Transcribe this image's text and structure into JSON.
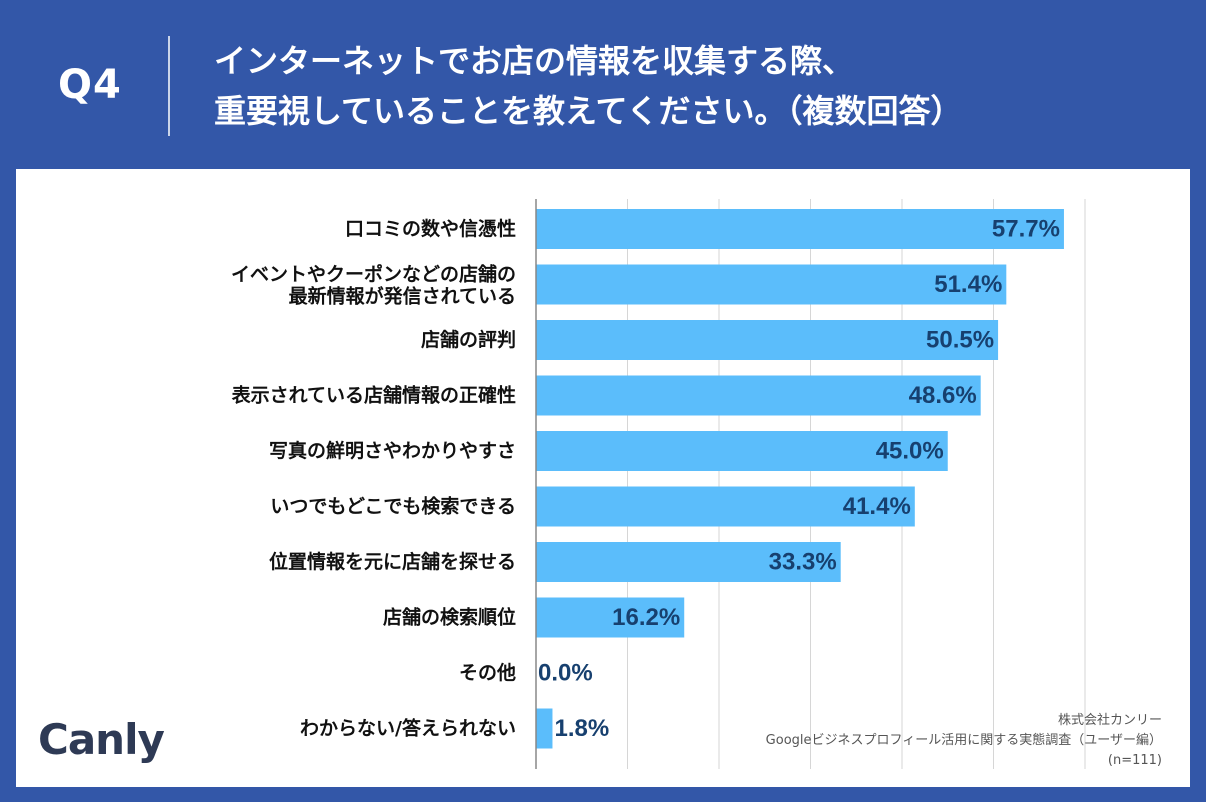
{
  "header": {
    "q_label": "Q4",
    "title_line1": "インターネットでお店の情報を収集する際、",
    "title_line2": "重要視していることを教えてください。（複数回答）"
  },
  "colors": {
    "background": "#3357a8",
    "bar": "#5bbdfb",
    "value_text": "#17406f"
  },
  "chart_data": {
    "type": "bar",
    "orientation": "horizontal",
    "xlim": [
      0,
      100
    ],
    "unit": "%",
    "categories": [
      "口コミの数や信憑性",
      "イベントやクーポンなどの店舗の\n最新情報が発信されている",
      "店舗の評判",
      "表示されている店舗情報の正確性",
      "写真の鮮明さやわかりやすさ",
      "いつでもどこでも検索できる",
      "位置情報を元に店舗を探せる",
      "店舗の検索順位",
      "その他",
      "わからない/答えられない"
    ],
    "values": [
      57.7,
      51.4,
      50.5,
      48.6,
      45.0,
      41.4,
      33.3,
      16.2,
      0.0,
      1.8
    ],
    "labels": [
      "57.7%",
      "51.4%",
      "50.5%",
      "48.6%",
      "45.0%",
      "41.4%",
      "33.3%",
      "16.2%",
      "0.0%",
      "1.8%"
    ]
  },
  "logo": {
    "brand": "Canly"
  },
  "credit": {
    "line1": "株式会社カンリー",
    "line2": "Googleビジネスプロフィール活用に関する実態調査（ユーザー編）",
    "line3": "(n=111)"
  }
}
